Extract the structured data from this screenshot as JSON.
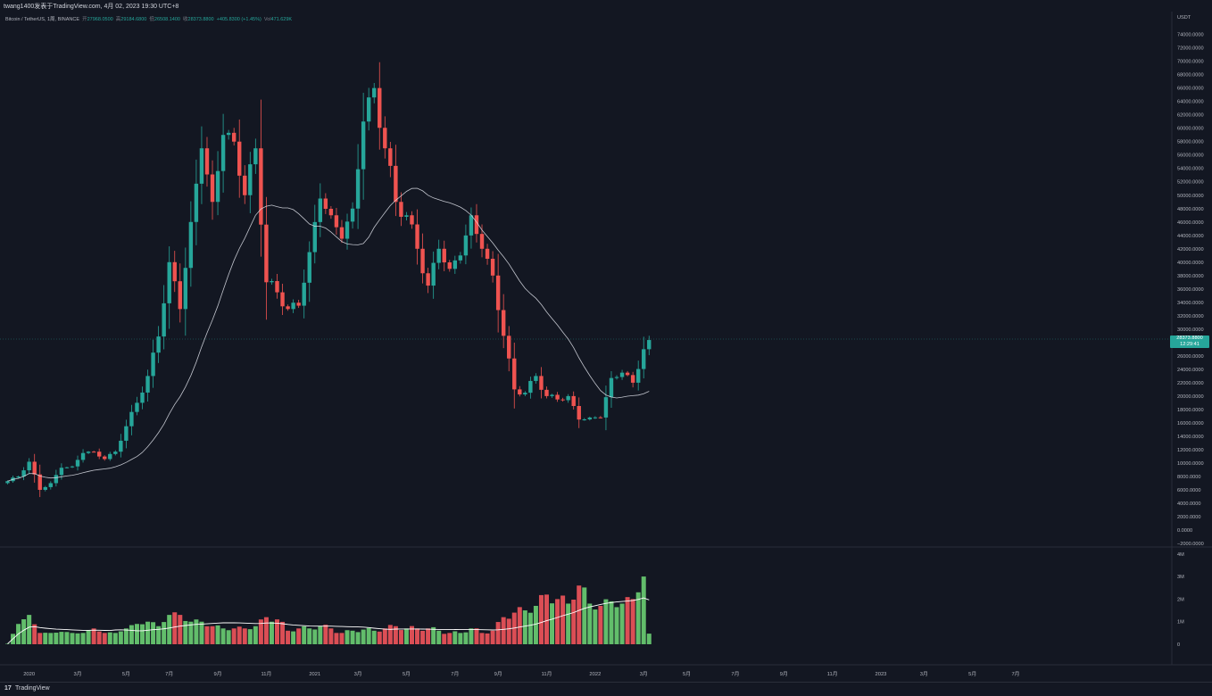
{
  "header": {
    "title": "twang1400发表于TradingView.com, 4月 02, 2023 19:30 UTC+8"
  },
  "legend": {
    "symbol": "Bitcoin / TetherUS, 1周, BINANCE",
    "open_label": "开",
    "open": "27968.0500",
    "high_label": "高",
    "high": "29184.6800",
    "low_label": "低",
    "low": "26508.1400",
    "close_label": "收",
    "close": "28373.8800",
    "change": "+405.8300 (+1.45%)",
    "vol_label": "Vol",
    "vol": "471.629K"
  },
  "price_axis": {
    "currency": "USDT",
    "ticks": [
      "74000.0000",
      "72000.0000",
      "70000.0000",
      "68000.0000",
      "66000.0000",
      "64000.0000",
      "62000.0000",
      "60000.0000",
      "58000.0000",
      "56000.0000",
      "54000.0000",
      "52000.0000",
      "50000.0000",
      "48000.0000",
      "46000.0000",
      "44000.0000",
      "42000.0000",
      "40000.0000",
      "38000.0000",
      "36000.0000",
      "34000.0000",
      "32000.0000",
      "30000.0000",
      "28000.0000",
      "26000.0000",
      "24000.0000",
      "22000.0000",
      "20000.0000",
      "18000.0000",
      "16000.0000",
      "14000.0000",
      "12000.0000",
      "10000.0000",
      "8000.0000",
      "6000.0000",
      "4000.0000",
      "2000.0000",
      "0.0000",
      "−2000.0000"
    ]
  },
  "price_tag": {
    "price": "28373.8800",
    "countdown": "12:29:41"
  },
  "volume_axis": {
    "ticks": [
      "4M",
      "3M",
      "2M",
      "1M",
      "0"
    ]
  },
  "time_axis": {
    "ticks": [
      "2020",
      "3月",
      "5月",
      "7月",
      "9月",
      "11月",
      "2021",
      "3月",
      "5月",
      "7月",
      "9月",
      "11月",
      "2022",
      "3月",
      "5月",
      "7月",
      "9月",
      "11月",
      "2023",
      "3月",
      "5月",
      "7月"
    ]
  },
  "footer": {
    "logo": "17",
    "brand": "TradingView"
  },
  "colors": {
    "up": "#26a69a",
    "down": "#ef5350",
    "vol_up": "#6bcf73",
    "vol_down": "#f2545b",
    "background": "#131722",
    "ma": "#e0e3eb"
  },
  "chart_data": {
    "type": "candlestick",
    "interval": "1 week",
    "first_week": "2019-12-02",
    "ylim": [
      -2000,
      74000
    ],
    "volume_ylim": [
      0,
      4000000
    ],
    "anchors": [
      [
        7300,
        20000
      ],
      [
        8000,
        900000
      ],
      [
        10200,
        1300000
      ],
      [
        6000,
        500000
      ],
      [
        7000,
        500000
      ],
      [
        9300,
        550000
      ],
      [
        9500,
        500000
      ],
      [
        11500,
        500000
      ],
      [
        11700,
        700000
      ],
      [
        10600,
        500000
      ],
      [
        11700,
        500000
      ],
      [
        15500,
        700000
      ],
      [
        19000,
        900000
      ],
      [
        23000,
        1000000
      ],
      [
        28900,
        800000
      ],
      [
        40000,
        1300000
      ],
      [
        33000,
        1300000
      ],
      [
        46000,
        1000000
      ],
      [
        57000,
        1000000
      ],
      [
        49000,
        800000
      ],
      [
        59000,
        700000
      ],
      [
        58000,
        700000
      ],
      [
        50000,
        700000
      ],
      [
        57000,
        800000
      ],
      [
        37000,
        1200000
      ],
      [
        35500,
        1100000
      ],
      [
        33000,
        600000
      ],
      [
        33500,
        700000
      ],
      [
        41500,
        700000
      ],
      [
        49500,
        800000
      ],
      [
        47000,
        700000
      ],
      [
        43500,
        500000
      ],
      [
        48000,
        600000
      ],
      [
        61000,
        650000
      ],
      [
        66000,
        600000
      ],
      [
        57000,
        700000
      ],
      [
        49000,
        800000
      ],
      [
        47000,
        700000
      ],
      [
        42000,
        700000
      ],
      [
        36500,
        700000
      ],
      [
        42000,
        600000
      ],
      [
        39000,
        500000
      ],
      [
        41000,
        500000
      ],
      [
        47000,
        700000
      ],
      [
        42000,
        500000
      ],
      [
        38000,
        600000
      ],
      [
        29000,
        1200000
      ],
      [
        21000,
        1400000
      ],
      [
        20500,
        1500000
      ],
      [
        23000,
        1700000
      ],
      [
        20000,
        2200000
      ],
      [
        19500,
        2000000
      ],
      [
        20000,
        1800000
      ],
      [
        16500,
        2600000
      ],
      [
        16800,
        1800000
      ],
      [
        16800,
        1700000
      ],
      [
        22700,
        1900000
      ],
      [
        23500,
        1800000
      ],
      [
        22000,
        2000000
      ],
      [
        27000,
        3000000
      ],
      [
        28373.88,
        470000
      ]
    ],
    "volume_ma_label": "Vol MA"
  }
}
